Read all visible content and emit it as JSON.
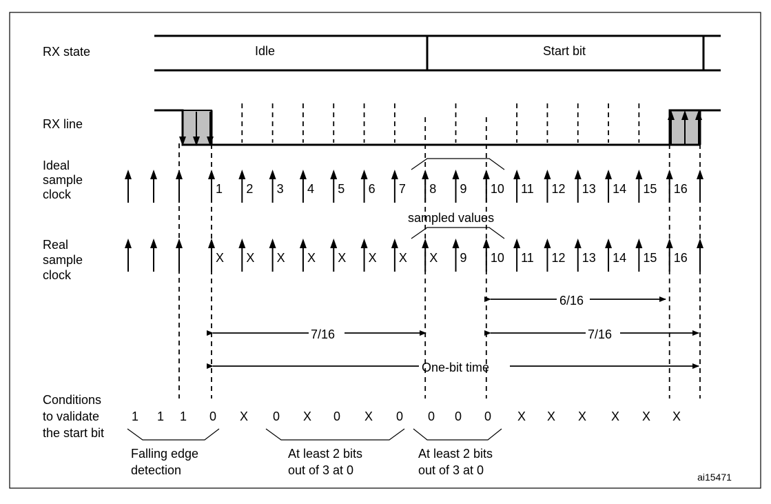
{
  "figure_id": "ai15471",
  "row_labels": {
    "rx_state": "RX state",
    "rx_line": "RX line",
    "ideal_clock": [
      "Ideal",
      "sample",
      "clock"
    ],
    "real_clock": [
      "Real",
      "sample",
      "clock"
    ],
    "conditions": [
      "Conditions",
      "to validate",
      "the start bit"
    ]
  },
  "states": {
    "idle": "Idle",
    "start_bit": "Start bit"
  },
  "ideal_numbers": [
    "1",
    "2",
    "3",
    "4",
    "5",
    "6",
    "7",
    "8",
    "9",
    "10",
    "11",
    "12",
    "13",
    "14",
    "15",
    "16"
  ],
  "real_numbers": [
    "X",
    "X",
    "X",
    "X",
    "X",
    "X",
    "X",
    "X",
    "9",
    "10",
    "11",
    "12",
    "13",
    "14",
    "15",
    "16"
  ],
  "sampled_values_label": "sampled values",
  "measures": {
    "six_sixteenths": "6/16",
    "seven_sixteenths_left": "7/16",
    "seven_sixteenths_right": "7/16",
    "one_bit_time": "One-bit time"
  },
  "conditions_values": [
    "1",
    "1",
    "1",
    "0",
    "X",
    "0",
    "X",
    "0",
    "X",
    "0",
    "0",
    "0",
    "0",
    "X",
    "X",
    "X",
    "X",
    "X",
    "X"
  ],
  "brace_labels": {
    "falling_edge": [
      "Falling edge",
      "detection"
    ],
    "two_of_three_a": [
      "At least 2 bits",
      "out of 3 at 0"
    ],
    "two_of_three_b": [
      "At least 2 bits",
      "out of 3 at 0"
    ]
  }
}
